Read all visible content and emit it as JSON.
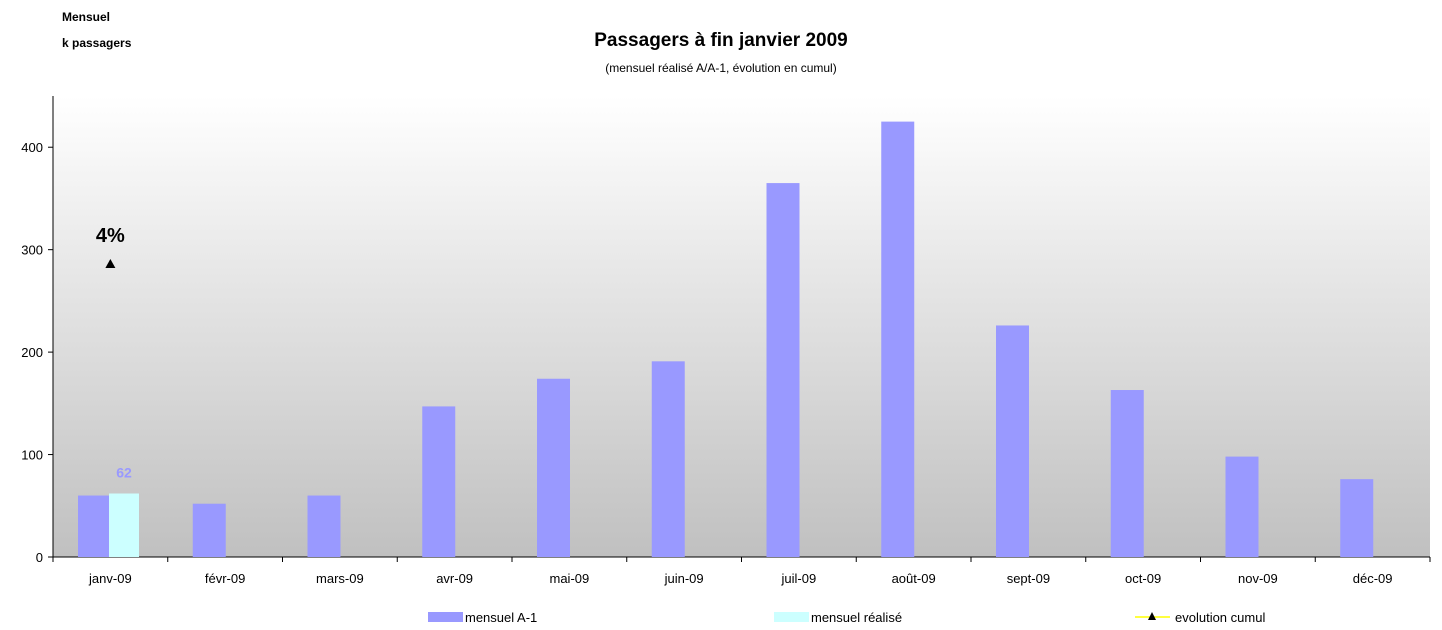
{
  "y_axis_title": [
    "Mensuel",
    "k passagers"
  ],
  "chart_data": {
    "type": "bar",
    "title": "Passagers à fin janvier 2009",
    "subtitle": "(mensuel réalisé A/A-1, évolution en cumul)",
    "categories": [
      "janv-09",
      "févr-09",
      "mars-09",
      "avr-09",
      "mai-09",
      "juin-09",
      "juil-09",
      "août-09",
      "sept-09",
      "oct-09",
      "nov-09",
      "déc-09"
    ],
    "series": [
      {
        "name": "mensuel A-1",
        "color": "#9999ff",
        "values": [
          60,
          52,
          60,
          147,
          174,
          191,
          365,
          425,
          226,
          163,
          98,
          76
        ]
      },
      {
        "name": "mensuel réalisé",
        "color": "#ccffff",
        "values": [
          62,
          null,
          null,
          null,
          null,
          null,
          null,
          null,
          null,
          null,
          null,
          null
        ]
      },
      {
        "name": "evolution cumul",
        "color": "#000000",
        "marker": "triangle",
        "values": [
          286,
          null,
          null,
          null,
          null,
          null,
          null,
          null,
          null,
          null,
          null,
          null
        ]
      }
    ],
    "data_labels": [
      {
        "series": "mensuel réalisé",
        "category": "janv-09",
        "text": "62",
        "color": "#9999ff"
      },
      {
        "series": "evolution cumul",
        "category": "janv-09",
        "text": "4%",
        "color": "#000000"
      }
    ],
    "yticks": [
      0,
      100,
      200,
      300,
      400
    ],
    "ylim": [
      0,
      450
    ],
    "legend_position": "bottom",
    "background": "gradient white to gray"
  }
}
